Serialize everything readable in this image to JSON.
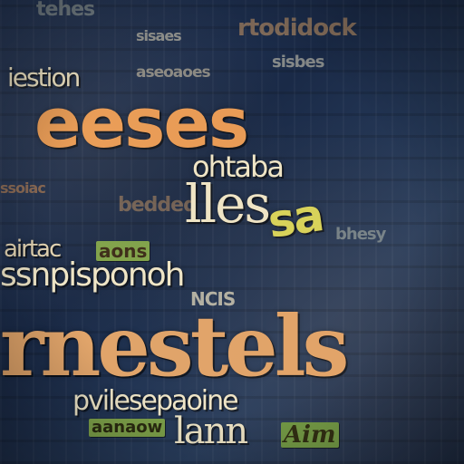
{
  "words": {
    "w1": "iestion",
    "w2": "eeses",
    "w3": "ohtaba",
    "w4": "lles",
    "w5": "sa",
    "w6": "ssnpisponoh",
    "w7": "rnestels",
    "w8": "pvilesepaoine",
    "w9": "lann",
    "w10": "Aim",
    "w11": "airtac",
    "w12": "aons",
    "w13": "rtodidock",
    "w14": "tehes",
    "w15": "sisaes",
    "w16": "sisbes",
    "w17": "aseoaoes",
    "w18": "ssoiac",
    "w19": "bedded",
    "w20": "aanaow",
    "w21": "NCIS",
    "w22": "bhesy"
  },
  "colors": {
    "background": "#1b2a44",
    "orange": "#e89a55",
    "tan": "#d9a36a",
    "cream": "#efe6c8",
    "green": "#7ea24a",
    "yellow": "#d7d35a",
    "blue": "#2c4a78"
  }
}
